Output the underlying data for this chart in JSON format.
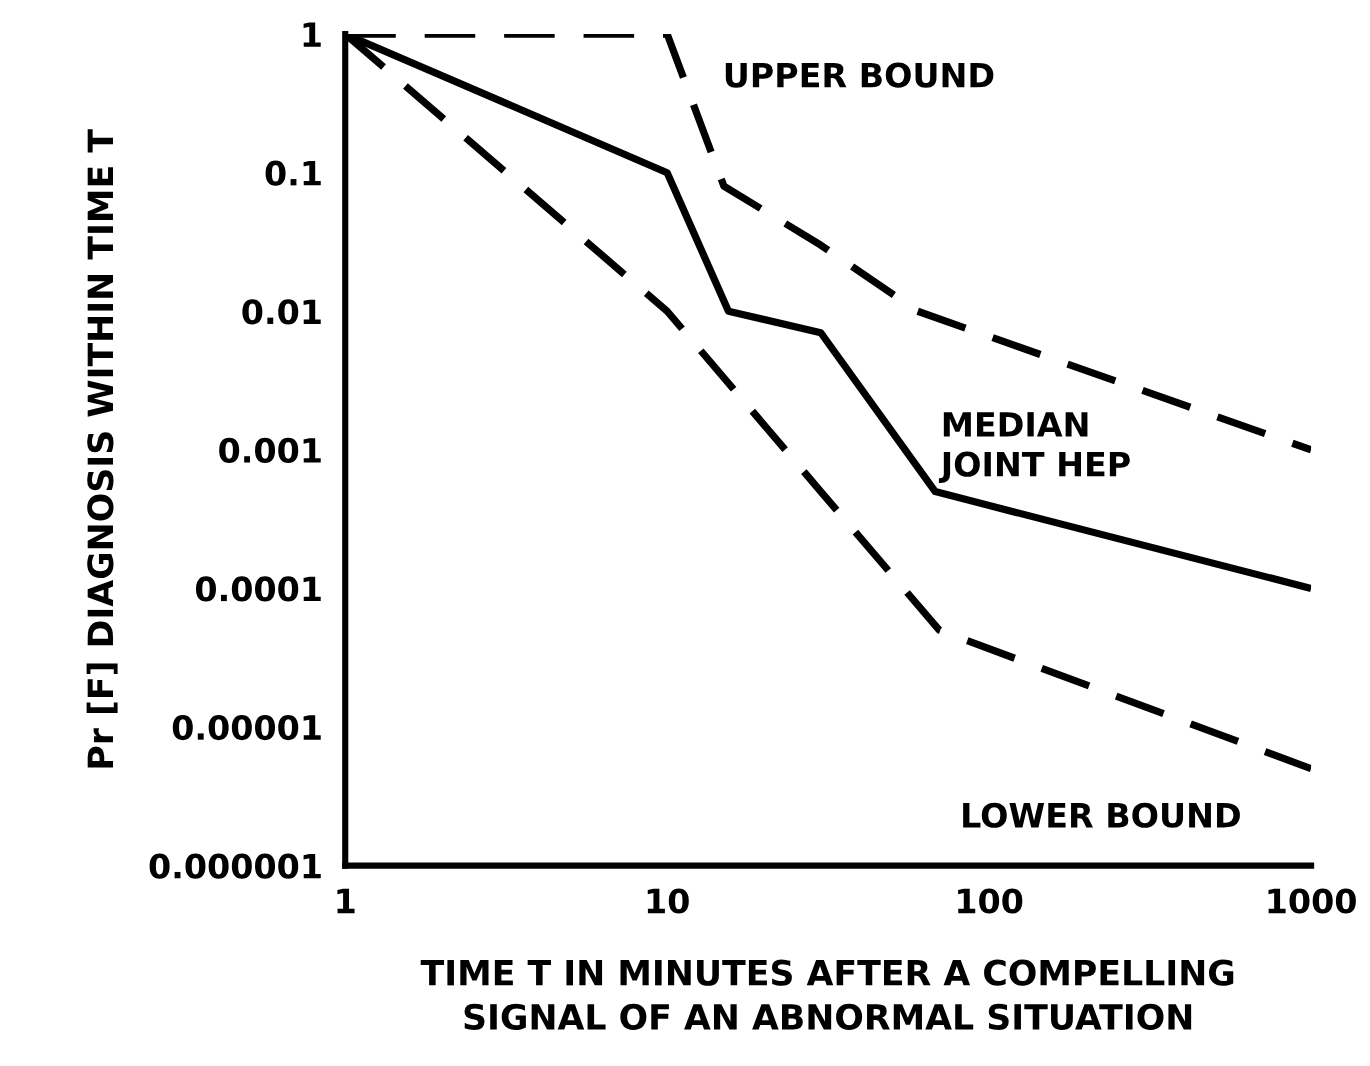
{
  "chart_data": {
    "type": "line",
    "xlabel": "TIME T IN MINUTES AFTER A COMPELLING\nSIGNAL OF AN ABNORMAL SITUATION",
    "ylabel": "Pr [F] DIAGNOSIS WITHIN TIME T",
    "log": "xy",
    "grid": false,
    "legend": false,
    "marker": "none",
    "xlim": [
      1,
      1000
    ],
    "xticks": [
      1,
      10,
      100,
      1000
    ],
    "ylim": [
      1e-06,
      1
    ],
    "yticks": [
      {
        "value": 1,
        "label": "1"
      },
      {
        "value": 0.1,
        "label": "0.1"
      },
      {
        "value": 0.01,
        "label": "0.01"
      },
      {
        "value": 0.001,
        "label": "0.001"
      },
      {
        "value": 0.0001,
        "label": "0.0001"
      },
      {
        "value": 1e-05,
        "label": "0.00001"
      },
      {
        "value": 1e-06,
        "label": "0.000001"
      }
    ],
    "series": [
      {
        "name": "UPPER BOUND",
        "color": "#000000",
        "line_style": "dashed",
        "x": [
          1,
          10,
          15,
          30,
          60,
          1000
        ],
        "values": [
          1,
          1,
          0.08,
          0.03,
          0.01,
          0.001
        ]
      },
      {
        "name": "MEDIAN\nJOINT HEP",
        "color": "#000000",
        "line_style": "solid",
        "x": [
          1,
          10,
          15.5,
          30,
          68,
          1000
        ],
        "values": [
          1,
          0.1,
          0.01,
          0.007,
          0.0005,
          0.0001
        ]
      },
      {
        "name": "LOWER BOUND",
        "color": "#000000",
        "line_style": "dashed",
        "x": [
          1,
          10,
          30,
          70,
          1000
        ],
        "values": [
          1,
          0.01,
          0.0005,
          5e-05,
          5e-06
        ]
      }
    ]
  }
}
